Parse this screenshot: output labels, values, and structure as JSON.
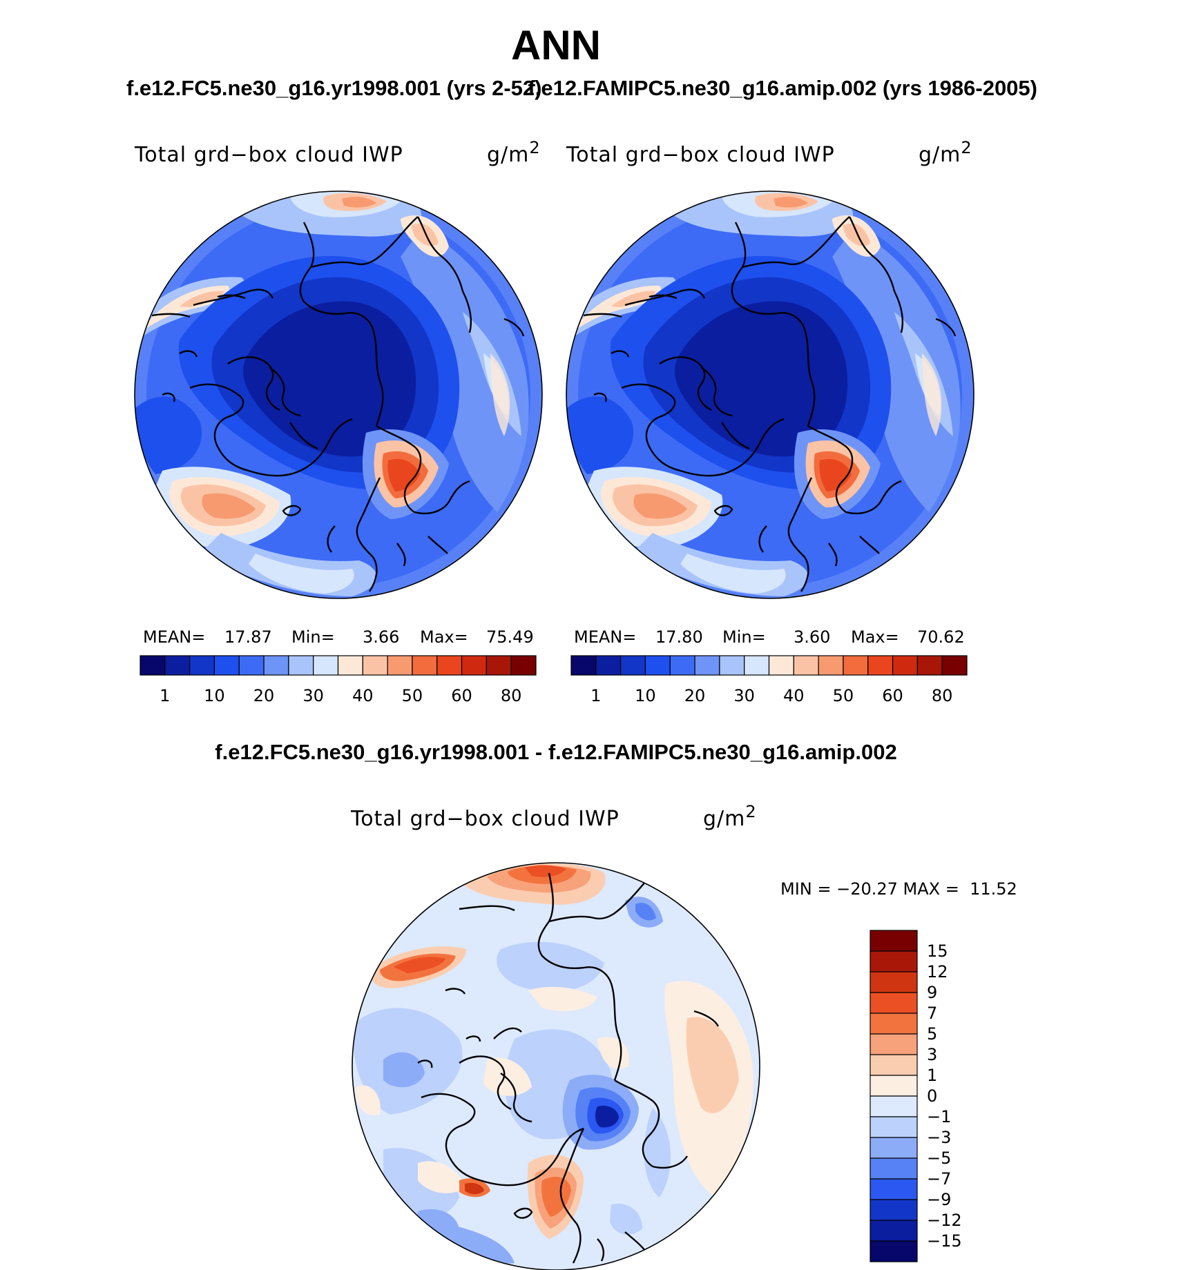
{
  "figure": {
    "title": "ANN",
    "subtitle_left": "f.e12.FC5.ne30_g16.yr1998.001 (yrs 2-52)",
    "subtitle_right": "f.e12.FAMIPC5.ne30_g16.amip.002 (yrs 1986-2005)",
    "diff_title": "f.e12.FC5.ne30_g16.yr1998.001 - f.e12.FAMIPC5.ne30_g16.amip.002"
  },
  "colors": {
    "abs_scale": [
      "#06066b",
      "#0b1ea0",
      "#1236c8",
      "#1e50ee",
      "#3d6bf5",
      "#6f94f8",
      "#a9c4fb",
      "#d6e6fc",
      "#fde8d8",
      "#fbc3a5",
      "#f79a70",
      "#f26c3e",
      "#e9461f",
      "#cf2a10",
      "#a81607",
      "#780000"
    ],
    "diff_scale": [
      "#06066b",
      "#0b1ea0",
      "#1236c8",
      "#2b58f0",
      "#5682f6",
      "#8cacf8",
      "#bcd1fb",
      "#dde9fd",
      "#fdeee2",
      "#fbcdb0",
      "#f7a27a",
      "#f3733f",
      "#eb5024",
      "#d03511",
      "#a91708",
      "#780000"
    ]
  },
  "panels": {
    "model_a": {
      "var_label": "Total grd−box cloud IWP",
      "units": "g/m",
      "units_sup": "2",
      "stats": {
        "mean_label": "MEAN=",
        "mean": "17.87",
        "min_label": "Min=",
        "min": "3.66",
        "max_label": "Max=",
        "max": "75.49"
      },
      "colorbar_ticks": [
        "1",
        "10",
        "20",
        "30",
        "40",
        "50",
        "60",
        "80"
      ]
    },
    "model_b": {
      "var_label": "Total grd−box cloud IWP",
      "units": "g/m",
      "units_sup": "2",
      "stats": {
        "mean_label": "MEAN=",
        "mean": "17.80",
        "min_label": "Min=",
        "min": "3.60",
        "max_label": "Max=",
        "max": "70.62"
      },
      "colorbar_ticks": [
        "1",
        "10",
        "20",
        "30",
        "40",
        "50",
        "60",
        "80"
      ]
    },
    "difference": {
      "var_label": "Total grd−box cloud IWP",
      "units": "g/m",
      "units_sup": "2",
      "minmax": "MIN = −20.27 MAX =  11.52",
      "colorbar_ticks": [
        "15",
        "12",
        "9",
        "7",
        "5",
        "3",
        "1",
        "0",
        "−1",
        "−3",
        "−5",
        "−7",
        "−9",
        "−12",
        "−15"
      ]
    }
  }
}
